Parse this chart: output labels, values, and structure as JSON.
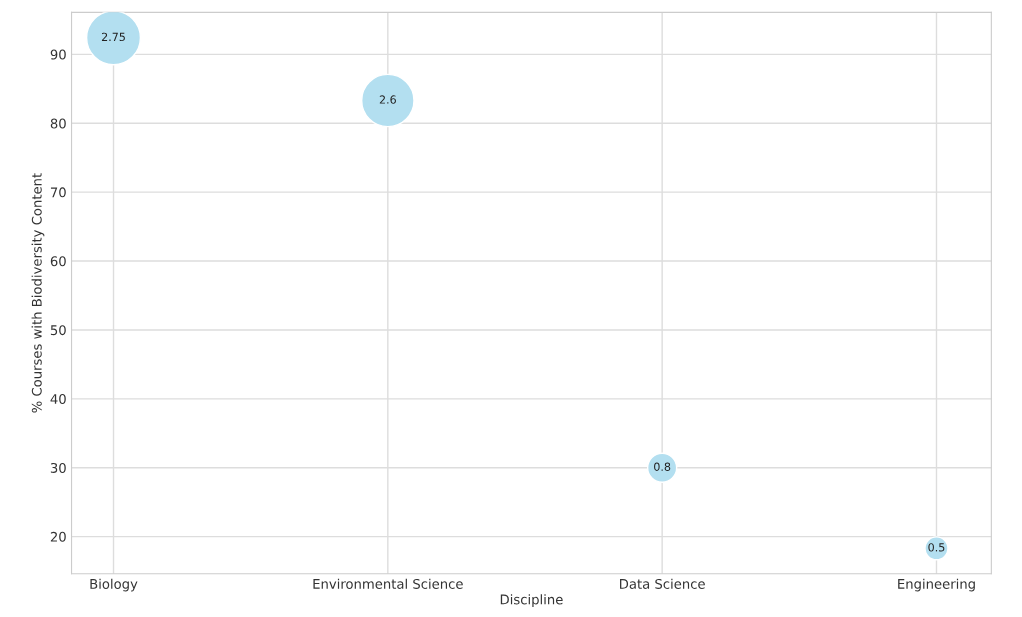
{
  "chart_data": {
    "type": "bubble",
    "xlabel": "Discipline",
    "ylabel": "% Courses with Biodiversity Content",
    "categories": [
      "Biology",
      "Environmental Science",
      "Data Science",
      "Engineering"
    ],
    "series": [
      {
        "color": "#b3dff0",
        "values": [
          92.4,
          83.3,
          30,
          18.3
        ],
        "sizes": [
          2.75,
          2.6,
          0.8,
          0.5
        ],
        "value_labels": [
          "2.75",
          "2.6",
          "0.8",
          "0.5"
        ]
      }
    ],
    "ylim": [
      14.6,
      96.1
    ],
    "yticks": [
      20,
      30,
      40,
      50,
      60,
      70,
      80,
      90
    ],
    "grid": true
  }
}
